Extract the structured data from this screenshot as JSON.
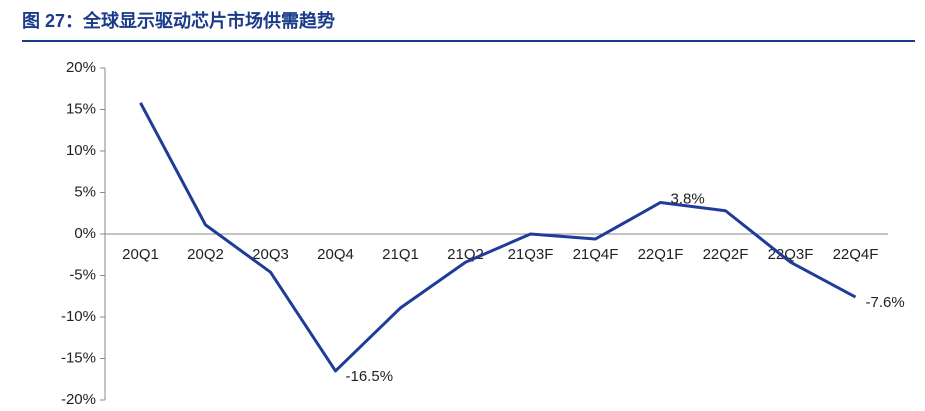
{
  "chart_data": {
    "type": "line",
    "title": "图 27：全球显示驱动芯片市场供需趋势",
    "categories": [
      "20Q1",
      "20Q2",
      "20Q3",
      "20Q4",
      "21Q1",
      "21Q2",
      "21Q3F",
      "21Q4F",
      "22Q1F",
      "22Q2F",
      "22Q3F",
      "22Q4F"
    ],
    "values": [
      15.8,
      1.1,
      -4.6,
      -16.5,
      -8.9,
      -3.4,
      0,
      -0.6,
      3.8,
      2.8,
      -3.4,
      -7.6
    ],
    "value_labels": [
      null,
      null,
      null,
      "-16.5%",
      null,
      null,
      null,
      null,
      "3.8%",
      null,
      null,
      "-7.6%"
    ],
    "color": "#1f3c99",
    "ylim": [
      -20,
      20
    ],
    "yticks": [
      {
        "value": -20,
        "label": "-20%"
      },
      {
        "value": -15,
        "label": "-15%"
      },
      {
        "value": -10,
        "label": "-10%"
      },
      {
        "value": -5,
        "label": "-5%"
      },
      {
        "value": 0,
        "label": "0%"
      },
      {
        "value": 5,
        "label": "5%"
      },
      {
        "value": 10,
        "label": "10%"
      },
      {
        "value": 15,
        "label": "15%"
      },
      {
        "value": 20,
        "label": "20%"
      }
    ],
    "grid": false
  }
}
